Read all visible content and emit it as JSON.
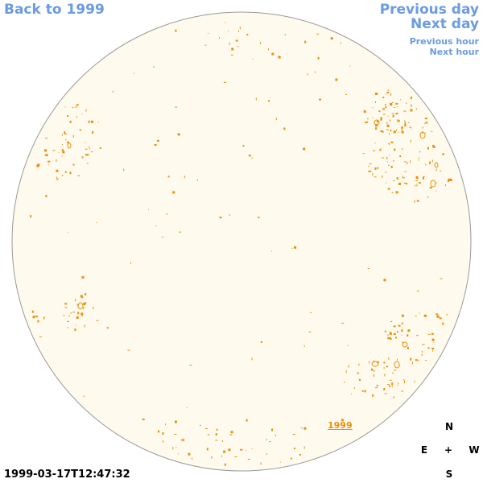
{
  "nav": {
    "back": "Back to 1999",
    "previous_day": "Previous day",
    "next_day": "Next day",
    "previous_hour": "Previous hour",
    "next_hour": "Next hour"
  },
  "compass": {
    "north": "N",
    "east": "E",
    "center": "+",
    "west": "W",
    "south": "S"
  },
  "timestamp": "1999-03-17T12:47:32",
  "year_link": "1999",
  "colors": {
    "disk_fill": "#fffaee",
    "disk_stroke": "#999999",
    "feature": "#e8900c",
    "link": "#6b9be0"
  },
  "icons": {
    "solar_disk": "sun-disk-icon",
    "compass": "compass-icon"
  }
}
